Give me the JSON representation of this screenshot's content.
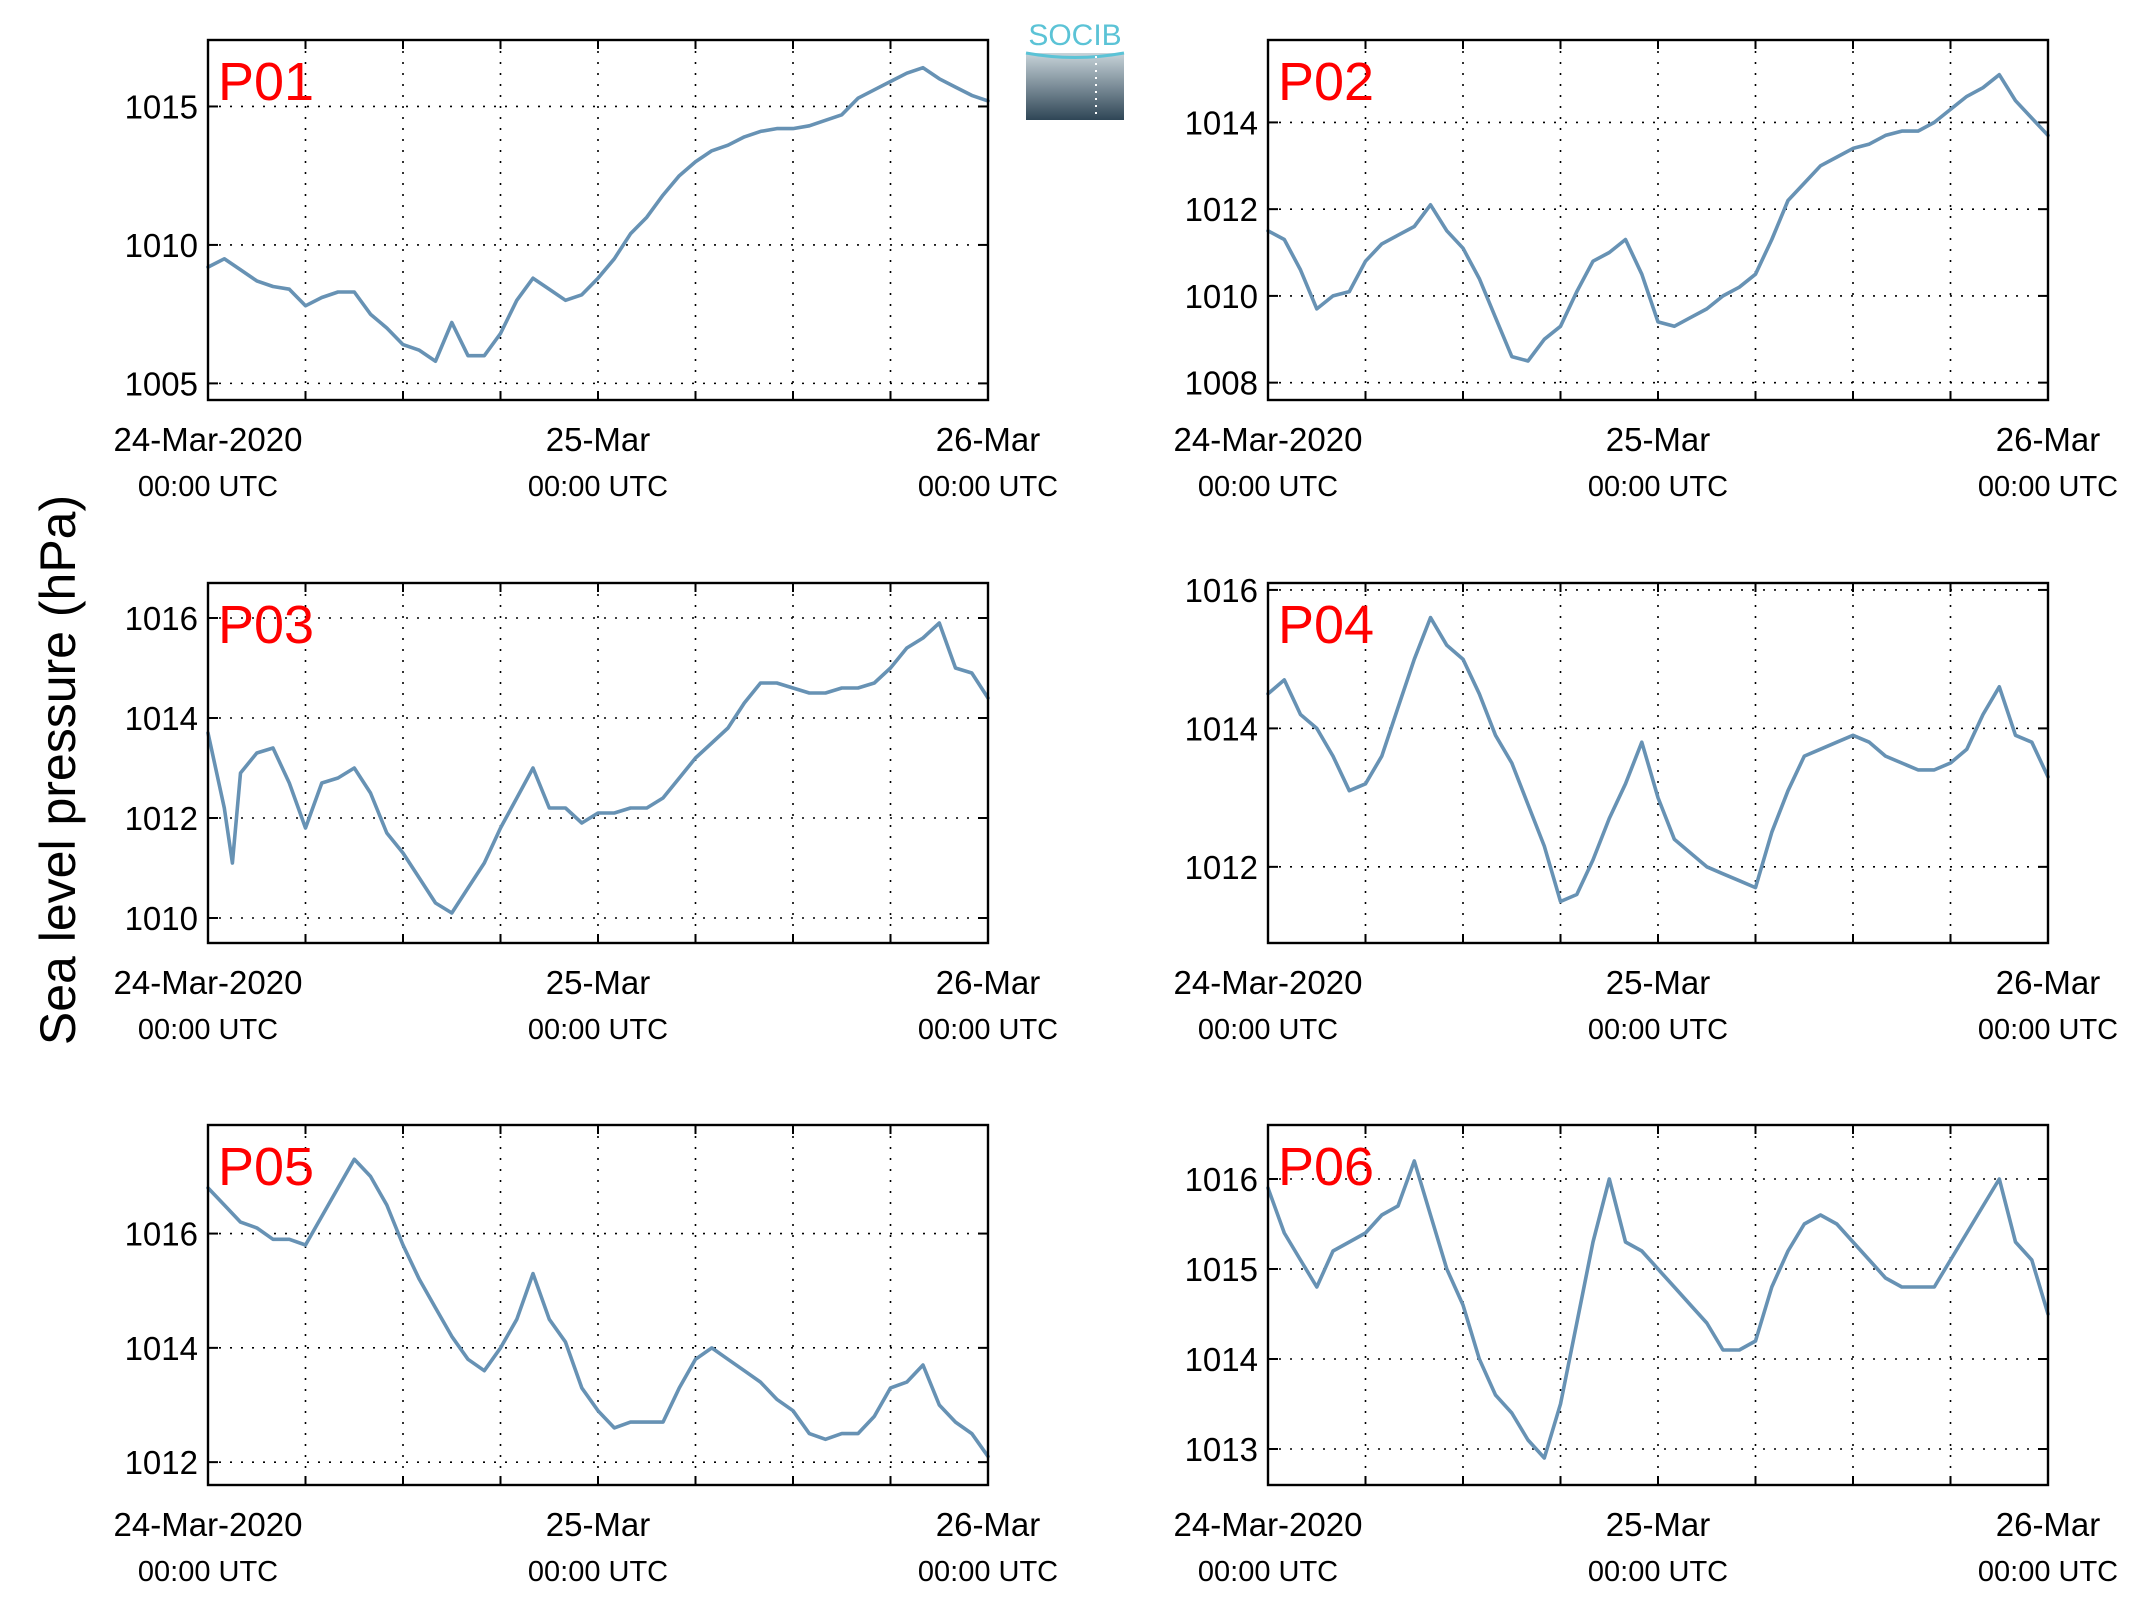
{
  "figure": {
    "ylabel": "Sea level pressure (hPa)",
    "line_color": "#6792b4",
    "panel_name_color": "#ff0000",
    "grid": "dotted",
    "logo": {
      "text": "SOCIB",
      "text_color": "#5bc3d6",
      "gradient_top": "#c7d3d9",
      "gradient_bottom": "#2f4656"
    }
  },
  "chart_data": [
    {
      "type": "line",
      "name": "P01",
      "xlim": [
        0,
        48
      ],
      "ylim": [
        1004.4,
        1017.4
      ],
      "yticks": [
        1005,
        1010,
        1015
      ],
      "xticks": [
        0,
        24,
        48
      ],
      "xtick_labels": [
        [
          "24-Mar-2020",
          "00:00 UTC"
        ],
        [
          "25-Mar",
          "00:00 UTC"
        ],
        [
          "26-Mar",
          "00:00 UTC"
        ]
      ],
      "x_gridlines": [
        0,
        6,
        12,
        18,
        24,
        30,
        36,
        42,
        48
      ],
      "x": [
        0,
        1,
        2,
        3,
        4,
        5,
        6,
        7,
        8,
        9,
        10,
        11,
        12,
        13,
        14,
        15,
        16,
        17,
        18,
        19,
        20,
        21,
        22,
        23,
        24,
        25,
        26,
        27,
        28,
        29,
        30,
        31,
        32,
        33,
        34,
        35,
        36,
        37,
        38,
        39,
        40,
        41,
        42,
        43,
        44,
        45,
        46,
        47,
        48
      ],
      "y": [
        1009.2,
        1009.5,
        1009.1,
        1008.7,
        1008.5,
        1008.4,
        1007.8,
        1008.1,
        1008.3,
        1008.3,
        1007.5,
        1007.0,
        1006.4,
        1006.2,
        1005.8,
        1007.2,
        1006.0,
        1006.0,
        1006.8,
        1008.0,
        1008.8,
        1008.4,
        1008.0,
        1008.2,
        1008.8,
        1009.5,
        1010.4,
        1011.0,
        1011.8,
        1012.5,
        1013.0,
        1013.4,
        1013.6,
        1013.9,
        1014.1,
        1014.2,
        1014.2,
        1014.3,
        1014.5,
        1014.7,
        1015.3,
        1015.6,
        1015.9,
        1016.2,
        1016.4,
        1016.0,
        1015.7,
        1015.4,
        1015.2
      ]
    },
    {
      "type": "line",
      "name": "P02",
      "xlim": [
        0,
        48
      ],
      "ylim": [
        1007.6,
        1015.9
      ],
      "yticks": [
        1008,
        1010,
        1012,
        1014
      ],
      "xticks": [
        0,
        24,
        48
      ],
      "xtick_labels": [
        [
          "24-Mar-2020",
          "00:00 UTC"
        ],
        [
          "25-Mar",
          "00:00 UTC"
        ],
        [
          "26-Mar",
          "00:00 UTC"
        ]
      ],
      "x_gridlines": [
        0,
        6,
        12,
        18,
        24,
        30,
        36,
        42,
        48
      ],
      "x": [
        0,
        1,
        2,
        3,
        4,
        5,
        6,
        7,
        8,
        9,
        10,
        11,
        12,
        13,
        14,
        15,
        16,
        17,
        18,
        19,
        20,
        21,
        22,
        23,
        24,
        25,
        26,
        27,
        28,
        29,
        30,
        31,
        32,
        33,
        34,
        35,
        36,
        37,
        38,
        39,
        40,
        41,
        42,
        43,
        44,
        45,
        46,
        47,
        48
      ],
      "y": [
        1011.5,
        1011.3,
        1010.6,
        1009.7,
        1010.0,
        1010.1,
        1010.8,
        1011.2,
        1011.4,
        1011.6,
        1012.1,
        1011.5,
        1011.1,
        1010.4,
        1009.5,
        1008.6,
        1008.5,
        1009.0,
        1009.3,
        1010.1,
        1010.8,
        1011.0,
        1011.3,
        1010.5,
        1009.4,
        1009.3,
        1009.5,
        1009.7,
        1010.0,
        1010.2,
        1010.5,
        1011.3,
        1012.2,
        1012.6,
        1013.0,
        1013.2,
        1013.4,
        1013.5,
        1013.7,
        1013.8,
        1013.8,
        1014.0,
        1014.3,
        1014.6,
        1014.8,
        1015.1,
        1014.5,
        1014.1,
        1013.7
      ]
    },
    {
      "type": "line",
      "name": "P03",
      "xlim": [
        0,
        48
      ],
      "ylim": [
        1009.5,
        1016.7
      ],
      "yticks": [
        1010,
        1012,
        1014,
        1016
      ],
      "xticks": [
        0,
        24,
        48
      ],
      "xtick_labels": [
        [
          "24-Mar-2020",
          "00:00 UTC"
        ],
        [
          "25-Mar",
          "00:00 UTC"
        ],
        [
          "26-Mar",
          "00:00 UTC"
        ]
      ],
      "x_gridlines": [
        0,
        6,
        12,
        18,
        24,
        30,
        36,
        42,
        48
      ],
      "x": [
        0,
        1,
        1.5,
        2,
        3,
        4,
        5,
        6,
        7,
        8,
        9,
        10,
        11,
        12,
        13,
        14,
        15,
        16,
        17,
        18,
        19,
        20,
        21,
        22,
        23,
        24,
        25,
        26,
        27,
        28,
        29,
        30,
        31,
        32,
        33,
        34,
        35,
        36,
        37,
        38,
        39,
        40,
        41,
        42,
        43,
        44,
        45,
        46,
        47,
        48
      ],
      "y": [
        1013.7,
        1012.2,
        1011.1,
        1012.9,
        1013.3,
        1013.4,
        1012.7,
        1011.8,
        1012.7,
        1012.8,
        1013.0,
        1012.5,
        1011.7,
        1011.3,
        1010.8,
        1010.3,
        1010.1,
        1010.6,
        1011.1,
        1011.8,
        1012.4,
        1013.0,
        1012.2,
        1012.2,
        1011.9,
        1012.1,
        1012.1,
        1012.2,
        1012.2,
        1012.4,
        1012.8,
        1013.2,
        1013.5,
        1013.8,
        1014.3,
        1014.7,
        1014.7,
        1014.6,
        1014.5,
        1014.5,
        1014.6,
        1014.6,
        1014.7,
        1015.0,
        1015.4,
        1015.6,
        1015.9,
        1015.0,
        1014.9,
        1014.4
      ]
    },
    {
      "type": "line",
      "name": "P04",
      "xlim": [
        0,
        48
      ],
      "ylim": [
        1010.9,
        1016.1
      ],
      "yticks": [
        1012,
        1014,
        1016
      ],
      "xticks": [
        0,
        24,
        48
      ],
      "xtick_labels": [
        [
          "24-Mar-2020",
          "00:00 UTC"
        ],
        [
          "25-Mar",
          "00:00 UTC"
        ],
        [
          "26-Mar",
          "00:00 UTC"
        ]
      ],
      "x_gridlines": [
        0,
        6,
        12,
        18,
        24,
        30,
        36,
        42,
        48
      ],
      "x": [
        0,
        1,
        2,
        3,
        4,
        5,
        6,
        7,
        8,
        9,
        10,
        11,
        12,
        13,
        14,
        15,
        16,
        17,
        18,
        19,
        20,
        21,
        22,
        23,
        24,
        25,
        26,
        27,
        28,
        29,
        30,
        31,
        32,
        33,
        34,
        35,
        36,
        37,
        38,
        39,
        40,
        41,
        42,
        43,
        44,
        45,
        46,
        47,
        48
      ],
      "y": [
        1014.5,
        1014.7,
        1014.2,
        1014.0,
        1013.6,
        1013.1,
        1013.2,
        1013.6,
        1014.3,
        1015.0,
        1015.6,
        1015.2,
        1015.0,
        1014.5,
        1013.9,
        1013.5,
        1012.9,
        1012.3,
        1011.5,
        1011.6,
        1012.1,
        1012.7,
        1013.2,
        1013.8,
        1013.0,
        1012.4,
        1012.2,
        1012.0,
        1011.9,
        1011.8,
        1011.7,
        1012.5,
        1013.1,
        1013.6,
        1013.7,
        1013.8,
        1013.9,
        1013.8,
        1013.6,
        1013.5,
        1013.4,
        1013.4,
        1013.5,
        1013.7,
        1014.2,
        1014.6,
        1013.9,
        1013.8,
        1013.3
      ]
    },
    {
      "type": "line",
      "name": "P05",
      "xlim": [
        0,
        48
      ],
      "ylim": [
        1011.6,
        1017.9
      ],
      "yticks": [
        1012,
        1014,
        1016
      ],
      "xticks": [
        0,
        24,
        48
      ],
      "xtick_labels": [
        [
          "24-Mar-2020",
          "00:00 UTC"
        ],
        [
          "25-Mar",
          "00:00 UTC"
        ],
        [
          "26-Mar",
          "00:00 UTC"
        ]
      ],
      "x_gridlines": [
        0,
        6,
        12,
        18,
        24,
        30,
        36,
        42,
        48
      ],
      "x": [
        0,
        1,
        2,
        3,
        4,
        5,
        6,
        7,
        8,
        9,
        10,
        11,
        12,
        13,
        14,
        15,
        16,
        17,
        18,
        19,
        20,
        21,
        22,
        23,
        24,
        25,
        26,
        27,
        28,
        29,
        30,
        31,
        32,
        33,
        34,
        35,
        36,
        37,
        38,
        39,
        40,
        41,
        42,
        43,
        44,
        45,
        46,
        47,
        48
      ],
      "y": [
        1016.8,
        1016.5,
        1016.2,
        1016.1,
        1015.9,
        1015.9,
        1015.8,
        1016.3,
        1016.8,
        1017.3,
        1017.0,
        1016.5,
        1015.8,
        1015.2,
        1014.7,
        1014.2,
        1013.8,
        1013.6,
        1014.0,
        1014.5,
        1015.3,
        1014.5,
        1014.1,
        1013.3,
        1012.9,
        1012.6,
        1012.7,
        1012.7,
        1012.7,
        1013.3,
        1013.8,
        1014.0,
        1013.8,
        1013.6,
        1013.4,
        1013.1,
        1012.9,
        1012.5,
        1012.4,
        1012.5,
        1012.5,
        1012.8,
        1013.3,
        1013.4,
        1013.7,
        1013.0,
        1012.7,
        1012.5,
        1012.1
      ]
    },
    {
      "type": "line",
      "name": "P06",
      "xlim": [
        0,
        48
      ],
      "ylim": [
        1012.6,
        1016.6
      ],
      "yticks": [
        1013,
        1014,
        1015,
        1016
      ],
      "xticks": [
        0,
        24,
        48
      ],
      "xtick_labels": [
        [
          "24-Mar-2020",
          "00:00 UTC"
        ],
        [
          "25-Mar",
          "00:00 UTC"
        ],
        [
          "26-Mar",
          "00:00 UTC"
        ]
      ],
      "x_gridlines": [
        0,
        6,
        12,
        18,
        24,
        30,
        36,
        42,
        48
      ],
      "x": [
        0,
        1,
        2,
        3,
        4,
        5,
        6,
        7,
        8,
        9,
        10,
        11,
        12,
        13,
        14,
        15,
        16,
        17,
        18,
        19,
        20,
        21,
        22,
        23,
        24,
        25,
        26,
        27,
        28,
        29,
        30,
        31,
        32,
        33,
        34,
        35,
        36,
        37,
        38,
        39,
        40,
        41,
        42,
        43,
        44,
        45,
        46,
        47,
        48
      ],
      "y": [
        1015.9,
        1015.4,
        1015.1,
        1014.8,
        1015.2,
        1015.3,
        1015.4,
        1015.6,
        1015.7,
        1016.2,
        1015.6,
        1015.0,
        1014.6,
        1014.0,
        1013.6,
        1013.4,
        1013.1,
        1012.9,
        1013.5,
        1014.4,
        1015.3,
        1016.0,
        1015.3,
        1015.2,
        1015.0,
        1014.8,
        1014.6,
        1014.4,
        1014.1,
        1014.1,
        1014.2,
        1014.8,
        1015.2,
        1015.5,
        1015.6,
        1015.5,
        1015.3,
        1015.1,
        1014.9,
        1014.8,
        1014.8,
        1014.8,
        1015.1,
        1015.4,
        1015.7,
        1016.0,
        1015.3,
        1015.1,
        1014.5
      ]
    }
  ]
}
